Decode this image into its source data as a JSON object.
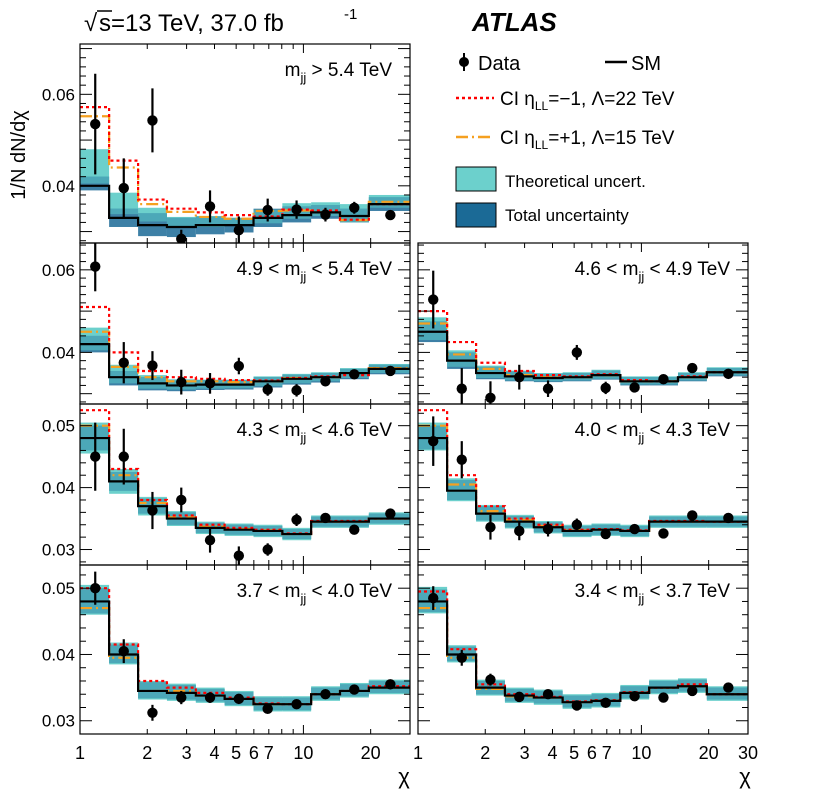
{
  "header": {
    "sqrt": "√",
    "energy": "s=13 TeV, 37.0 fb",
    "lumi_exp": "-1",
    "experiment": "ATLAS"
  },
  "axes": {
    "ylabel": "1/N dN/dχ",
    "xlabel": "χ",
    "x_range": [
      1,
      30
    ],
    "x_scale": "log"
  },
  "legend": {
    "data": "Data",
    "sm": "SM",
    "ci_neg": {
      "pre": "CI η",
      "sub": "LL",
      "post": "=−1, Λ=22 TeV"
    },
    "ci_pos": {
      "pre": "CI η",
      "sub": "LL",
      "post": "=+1, Λ=15 TeV"
    },
    "theory": "Theoretical uncert.",
    "total": "Total uncertainty"
  },
  "colors": {
    "sm": "#000000",
    "ci_neg": "#ff0000",
    "ci_pos": "#f5a020",
    "theory_band": "#6cd0cc",
    "total_band": "#1b6a96",
    "data": "#000000"
  },
  "chart_data": [
    {
      "type": "step-histogram",
      "label": {
        "pre": "m",
        "sub": "jj",
        "post": " > 5.4 TeV"
      },
      "ylim": [
        0.0275,
        0.071
      ],
      "yticks": [
        {
          "v": 0.04,
          "t": "0.04"
        },
        {
          "v": 0.06,
          "t": "0.06"
        }
      ],
      "xbins": [
        1.0,
        1.35,
        1.82,
        2.45,
        3.3,
        4.44,
        5.98,
        8.05,
        10.83,
        14.58,
        19.63,
        30.0
      ],
      "sm": [
        0.04,
        0.033,
        0.0314,
        0.031,
        0.0314,
        0.0314,
        0.033,
        0.0336,
        0.0342,
        0.0334,
        0.036
      ],
      "ci_neg": [
        0.0572,
        0.0455,
        0.037,
        0.035,
        0.0342,
        0.0336,
        0.0333,
        0.0348,
        0.0346,
        0.0326,
        0.036
      ],
      "ci_pos": [
        0.0552,
        0.044,
        0.036,
        0.0343,
        0.0332,
        0.0328,
        0.0345,
        0.0346,
        0.0342,
        0.0325,
        0.0365
      ],
      "theory_lo": [
        0.0405,
        0.0338,
        0.0322,
        0.0308,
        0.031,
        0.0312,
        0.0318,
        0.0328,
        0.0334,
        0.032,
        0.0352
      ],
      "theory_hi": [
        0.048,
        0.0385,
        0.0352,
        0.0332,
        0.0334,
        0.033,
        0.0348,
        0.0362,
        0.0364,
        0.036,
        0.038
      ],
      "total_lo": [
        0.039,
        0.031,
        0.029,
        0.0288,
        0.0294,
        0.0298,
        0.031,
        0.032,
        0.0328,
        0.032,
        0.0345
      ],
      "total_hi": [
        0.042,
        0.035,
        0.034,
        0.033,
        0.0333,
        0.033,
        0.035,
        0.0355,
        0.0358,
        0.035,
        0.0375
      ],
      "data_x": [
        1.17,
        1.57,
        2.11,
        2.84,
        3.82,
        5.14,
        6.92,
        9.32,
        12.55,
        16.89,
        24.5
      ],
      "data_y": [
        0.0535,
        0.0395,
        0.0543,
        0.0284,
        0.0355,
        0.0303,
        0.0347,
        0.0348,
        0.0337,
        0.0352,
        0.0336
      ],
      "data_err": [
        0.011,
        0.0065,
        0.007,
        0.002,
        0.0035,
        0.003,
        0.0025,
        0.002,
        0.0015,
        0.0013,
        0.001
      ]
    },
    {
      "type": "step-histogram",
      "label": {
        "pre": "4.9 < m",
        "sub": "jj",
        "post": " < 5.4 TeV"
      },
      "ylim": [
        0.0275,
        0.0665
      ],
      "yticks": [
        {
          "v": 0.04,
          "t": "0.04"
        },
        {
          "v": 0.06,
          "t": "0.06"
        }
      ],
      "xbins": [
        1.0,
        1.35,
        1.82,
        2.45,
        3.3,
        4.44,
        5.98,
        8.05,
        10.83,
        14.58,
        19.63,
        30.0
      ],
      "sm": [
        0.042,
        0.034,
        0.0325,
        0.032,
        0.0322,
        0.0322,
        0.033,
        0.0336,
        0.034,
        0.035,
        0.036
      ],
      "ci_neg": [
        0.051,
        0.04,
        0.0355,
        0.034,
        0.0336,
        0.0333,
        0.0332,
        0.0338,
        0.0342,
        0.0345,
        0.036
      ],
      "ci_pos": [
        0.045,
        0.0365,
        0.034,
        0.033,
        0.033,
        0.0328,
        0.033,
        0.0338,
        0.034,
        0.035,
        0.0362
      ],
      "theory_lo": [
        0.0405,
        0.0325,
        0.0312,
        0.031,
        0.0312,
        0.0313,
        0.0318,
        0.0325,
        0.033,
        0.0338,
        0.035
      ],
      "theory_hi": [
        0.046,
        0.037,
        0.0345,
        0.0335,
        0.0334,
        0.0334,
        0.0342,
        0.0348,
        0.0352,
        0.0362,
        0.0372
      ],
      "total_lo": [
        0.04,
        0.032,
        0.0308,
        0.0306,
        0.0309,
        0.031,
        0.0315,
        0.0322,
        0.0327,
        0.0335,
        0.0347
      ],
      "total_hi": [
        0.044,
        0.0355,
        0.034,
        0.0332,
        0.0333,
        0.0333,
        0.034,
        0.0346,
        0.035,
        0.036,
        0.037
      ],
      "data_x": [
        1.17,
        1.57,
        2.11,
        2.84,
        3.82,
        5.14,
        6.92,
        9.32,
        12.55,
        16.89,
        24.5
      ],
      "data_y": [
        0.0608,
        0.0375,
        0.0368,
        0.0328,
        0.0325,
        0.0367,
        0.031,
        0.0308,
        0.033,
        0.0347,
        0.0355
      ],
      "data_err": [
        0.006,
        0.005,
        0.0035,
        0.003,
        0.0025,
        0.002,
        0.0015,
        0.0015,
        0.0012,
        0.001,
        0.0008
      ]
    },
    {
      "type": "step-histogram",
      "label": {
        "pre": "4.6 < m",
        "sub": "jj",
        "post": " < 4.9 TeV"
      },
      "ylim": [
        0.0275,
        0.0665
      ],
      "yticks": [],
      "xbins": [
        1.0,
        1.35,
        1.82,
        2.45,
        3.3,
        4.44,
        5.98,
        8.05,
        10.83,
        14.58,
        19.63,
        30.0
      ],
      "sm": [
        0.045,
        0.038,
        0.035,
        0.0342,
        0.0338,
        0.034,
        0.0345,
        0.033,
        0.033,
        0.034,
        0.0352
      ],
      "ci_neg": [
        0.05,
        0.0425,
        0.0375,
        0.0355,
        0.0345,
        0.0342,
        0.0347,
        0.0333,
        0.033,
        0.0342,
        0.0352
      ],
      "ci_pos": [
        0.047,
        0.0395,
        0.036,
        0.0345,
        0.034,
        0.034,
        0.0345,
        0.033,
        0.033,
        0.034,
        0.0352
      ],
      "theory_lo": [
        0.043,
        0.0365,
        0.0338,
        0.0332,
        0.033,
        0.0332,
        0.0336,
        0.0322,
        0.0322,
        0.0332,
        0.0344
      ],
      "theory_hi": [
        0.0485,
        0.0405,
        0.0368,
        0.0356,
        0.035,
        0.0352,
        0.0358,
        0.0342,
        0.0342,
        0.0352,
        0.0364
      ],
      "total_lo": [
        0.0425,
        0.036,
        0.0335,
        0.033,
        0.0328,
        0.033,
        0.0334,
        0.032,
        0.032,
        0.033,
        0.0342
      ],
      "total_hi": [
        0.0475,
        0.04,
        0.0365,
        0.0354,
        0.0348,
        0.035,
        0.0356,
        0.034,
        0.034,
        0.035,
        0.0362
      ],
      "data_x": [
        1.17,
        1.57,
        2.11,
        2.84,
        3.82,
        5.14,
        6.92,
        9.32,
        12.55,
        16.89,
        24.5
      ],
      "data_y": [
        0.0528,
        0.0312,
        0.029,
        0.034,
        0.0312,
        0.04,
        0.0314,
        0.0315,
        0.0335,
        0.0362,
        0.0348
      ],
      "data_err": [
        0.007,
        0.005,
        0.004,
        0.003,
        0.002,
        0.0018,
        0.0015,
        0.0012,
        0.001,
        0.0008,
        0.0006
      ]
    },
    {
      "type": "step-histogram",
      "label": {
        "pre": "4.3 < m",
        "sub": "jj",
        "post": " < 4.6 TeV"
      },
      "ylim": [
        0.0275,
        0.0535
      ],
      "yticks": [
        {
          "v": 0.03,
          "t": "0.03"
        },
        {
          "v": 0.04,
          "t": "0.04"
        },
        {
          "v": 0.05,
          "t": "0.05"
        }
      ],
      "xbins": [
        1.0,
        1.35,
        1.82,
        2.45,
        3.3,
        4.44,
        5.98,
        8.05,
        10.83,
        14.58,
        19.63,
        30.0
      ],
      "sm": [
        0.048,
        0.041,
        0.037,
        0.035,
        0.0335,
        0.0332,
        0.033,
        0.0325,
        0.0345,
        0.0345,
        0.035
      ],
      "ci_neg": [
        0.0525,
        0.043,
        0.038,
        0.0355,
        0.034,
        0.0335,
        0.0332,
        0.0326,
        0.0346,
        0.0346,
        0.035
      ],
      "ci_pos": [
        0.05,
        0.042,
        0.0375,
        0.0352,
        0.0337,
        0.0333,
        0.0331,
        0.0325,
        0.0345,
        0.0345,
        0.035
      ],
      "theory_lo": [
        0.0455,
        0.039,
        0.0355,
        0.0338,
        0.0325,
        0.0322,
        0.032,
        0.0315,
        0.0335,
        0.0335,
        0.034
      ],
      "theory_hi": [
        0.0505,
        0.043,
        0.0385,
        0.0362,
        0.0345,
        0.0342,
        0.034,
        0.0335,
        0.0355,
        0.0355,
        0.036
      ],
      "total_lo": [
        0.046,
        0.0395,
        0.0358,
        0.034,
        0.0327,
        0.0324,
        0.0322,
        0.0317,
        0.0337,
        0.0337,
        0.0342
      ],
      "total_hi": [
        0.05,
        0.0425,
        0.0382,
        0.036,
        0.0343,
        0.034,
        0.0338,
        0.0333,
        0.0353,
        0.0353,
        0.0358
      ],
      "data_x": [
        1.17,
        1.57,
        2.11,
        2.84,
        3.82,
        5.14,
        6.92,
        9.32,
        12.55,
        16.89,
        24.5
      ],
      "data_y": [
        0.045,
        0.045,
        0.0363,
        0.038,
        0.0315,
        0.029,
        0.03,
        0.0348,
        0.0351,
        0.0332,
        0.0358
      ],
      "data_err": [
        0.0055,
        0.0045,
        0.003,
        0.002,
        0.002,
        0.0015,
        0.001,
        0.001,
        0.0008,
        0.0006,
        0.0005
      ]
    },
    {
      "type": "step-histogram",
      "label": {
        "pre": "4.0 < m",
        "sub": "jj",
        "post": " < 4.3 TeV"
      },
      "ylim": [
        0.0275,
        0.0535
      ],
      "yticks": [],
      "xbins": [
        1.0,
        1.35,
        1.82,
        2.45,
        3.3,
        4.44,
        5.98,
        8.05,
        10.83,
        14.58,
        19.63,
        30.0
      ],
      "sm": [
        0.048,
        0.0395,
        0.0358,
        0.0345,
        0.0336,
        0.033,
        0.0332,
        0.033,
        0.0345,
        0.0345,
        0.0345
      ],
      "ci_neg": [
        0.0525,
        0.042,
        0.037,
        0.035,
        0.034,
        0.0332,
        0.0333,
        0.0331,
        0.0346,
        0.0346,
        0.0345
      ],
      "ci_pos": [
        0.05,
        0.0405,
        0.0362,
        0.0348,
        0.0338,
        0.0331,
        0.0332,
        0.033,
        0.0345,
        0.0345,
        0.0345
      ],
      "theory_lo": [
        0.046,
        0.0378,
        0.0345,
        0.0334,
        0.0326,
        0.032,
        0.0322,
        0.032,
        0.0335,
        0.0335,
        0.0335
      ],
      "theory_hi": [
        0.0505,
        0.0415,
        0.0372,
        0.0356,
        0.0346,
        0.034,
        0.0342,
        0.034,
        0.0355,
        0.0355,
        0.0355
      ],
      "total_lo": [
        0.0462,
        0.038,
        0.0347,
        0.0336,
        0.0328,
        0.0322,
        0.0324,
        0.0322,
        0.0337,
        0.0337,
        0.0337
      ],
      "total_hi": [
        0.05,
        0.0412,
        0.037,
        0.0354,
        0.0344,
        0.0338,
        0.034,
        0.0338,
        0.0353,
        0.0353,
        0.0353
      ],
      "data_x": [
        1.17,
        1.57,
        2.11,
        2.84,
        3.82,
        5.14,
        6.92,
        9.32,
        12.55,
        16.89,
        24.5
      ],
      "data_y": [
        0.0475,
        0.0445,
        0.0336,
        0.033,
        0.0333,
        0.034,
        0.0325,
        0.0333,
        0.0326,
        0.0355,
        0.0351
      ],
      "data_err": [
        0.004,
        0.003,
        0.002,
        0.0015,
        0.0012,
        0.001,
        0.0008,
        0.0006,
        0.0005,
        0.0005,
        0.0004
      ]
    },
    {
      "type": "step-histogram",
      "label": {
        "pre": "3.7 < m",
        "sub": "jj",
        "post": " < 4.0 TeV"
      },
      "ylim": [
        0.028,
        0.0535
      ],
      "yticks": [
        {
          "v": 0.03,
          "t": "0.03"
        },
        {
          "v": 0.04,
          "t": "0.04"
        },
        {
          "v": 0.05,
          "t": "0.05"
        }
      ],
      "xbins": [
        1.0,
        1.35,
        1.82,
        2.45,
        3.3,
        4.44,
        5.98,
        8.05,
        10.83,
        14.58,
        19.63,
        30.0
      ],
      "sm": [
        0.048,
        0.04,
        0.0345,
        0.0342,
        0.0338,
        0.0333,
        0.0325,
        0.0325,
        0.034,
        0.0345,
        0.035
      ],
      "ci_neg": [
        0.05,
        0.0415,
        0.036,
        0.035,
        0.0342,
        0.0335,
        0.0326,
        0.0325,
        0.034,
        0.0345,
        0.0352
      ],
      "ci_pos": [
        0.047,
        0.0395,
        0.0345,
        0.0345,
        0.0338,
        0.0333,
        0.0325,
        0.0325,
        0.034,
        0.0345,
        0.035
      ],
      "theory_lo": [
        0.046,
        0.0385,
        0.0332,
        0.033,
        0.0327,
        0.0322,
        0.0314,
        0.0314,
        0.033,
        0.0335,
        0.034
      ],
      "theory_hi": [
        0.0505,
        0.0418,
        0.036,
        0.0356,
        0.035,
        0.0345,
        0.0337,
        0.0337,
        0.0352,
        0.0357,
        0.0362
      ],
      "total_lo": [
        0.0462,
        0.0387,
        0.0334,
        0.0332,
        0.0329,
        0.0324,
        0.0316,
        0.0316,
        0.0332,
        0.0337,
        0.0342
      ],
      "total_hi": [
        0.05,
        0.0415,
        0.0358,
        0.0354,
        0.0348,
        0.0343,
        0.0335,
        0.0335,
        0.035,
        0.0355,
        0.036
      ],
      "data_x": [
        1.17,
        1.57,
        2.11,
        2.84,
        3.82,
        5.14,
        6.92,
        9.32,
        12.55,
        16.89,
        24.5
      ],
      "data_y": [
        0.05,
        0.0405,
        0.0312,
        0.0335,
        0.0335,
        0.0333,
        0.0318,
        0.0325,
        0.034,
        0.0347,
        0.0355
      ],
      "data_err": [
        0.0025,
        0.0018,
        0.0012,
        0.001,
        0.0008,
        0.0006,
        0.0005,
        0.0004,
        0.0004,
        0.0003,
        0.0003
      ]
    },
    {
      "type": "step-histogram",
      "label": {
        "pre": "3.4 < m",
        "sub": "jj",
        "post": " < 3.7 TeV"
      },
      "ylim": [
        0.028,
        0.0535
      ],
      "yticks": [],
      "xbins": [
        1.0,
        1.35,
        1.82,
        2.45,
        3.3,
        4.44,
        5.98,
        8.05,
        10.83,
        14.58,
        19.63,
        30.0
      ],
      "sm": [
        0.048,
        0.04,
        0.035,
        0.0338,
        0.0335,
        0.0328,
        0.033,
        0.0342,
        0.035,
        0.0352,
        0.034
      ],
      "ci_neg": [
        0.0495,
        0.0408,
        0.0355,
        0.034,
        0.0336,
        0.0329,
        0.0331,
        0.0343,
        0.035,
        0.0355,
        0.034
      ],
      "ci_pos": [
        0.047,
        0.0395,
        0.0348,
        0.0337,
        0.0335,
        0.0328,
        0.033,
        0.0342,
        0.035,
        0.0352,
        0.034
      ],
      "theory_lo": [
        0.0462,
        0.0388,
        0.0338,
        0.0327,
        0.0324,
        0.0318,
        0.032,
        0.0332,
        0.034,
        0.0342,
        0.033
      ],
      "theory_hi": [
        0.0502,
        0.0414,
        0.0362,
        0.035,
        0.0347,
        0.034,
        0.0342,
        0.0354,
        0.0362,
        0.0364,
        0.0352
      ],
      "total_lo": [
        0.0464,
        0.039,
        0.034,
        0.0329,
        0.0326,
        0.032,
        0.0322,
        0.0334,
        0.0342,
        0.0344,
        0.0332
      ],
      "total_hi": [
        0.0498,
        0.0412,
        0.036,
        0.0348,
        0.0345,
        0.0338,
        0.034,
        0.0352,
        0.036,
        0.0362,
        0.035
      ],
      "data_x": [
        1.17,
        1.57,
        2.11,
        2.84,
        3.82,
        5.14,
        6.92,
        9.32,
        12.55,
        16.89,
        24.5
      ],
      "data_y": [
        0.0485,
        0.0395,
        0.0362,
        0.0336,
        0.034,
        0.0323,
        0.0327,
        0.0337,
        0.0335,
        0.0345,
        0.035
      ],
      "data_err": [
        0.0018,
        0.0012,
        0.0009,
        0.0006,
        0.0005,
        0.0004,
        0.0004,
        0.0003,
        0.0003,
        0.0003,
        0.0002
      ]
    }
  ],
  "xticks": [
    {
      "v": 1,
      "t": "1"
    },
    {
      "v": 2,
      "t": "2"
    },
    {
      "v": 3,
      "t": "3"
    },
    {
      "v": 4,
      "t": "4"
    },
    {
      "v": 5,
      "t": "5"
    },
    {
      "v": 6,
      "t": "6"
    },
    {
      "v": 7,
      "t": "7"
    },
    {
      "v": 10,
      "t": "10"
    },
    {
      "v": 20,
      "t": "20"
    },
    {
      "v": 30,
      "t": "30"
    }
  ]
}
